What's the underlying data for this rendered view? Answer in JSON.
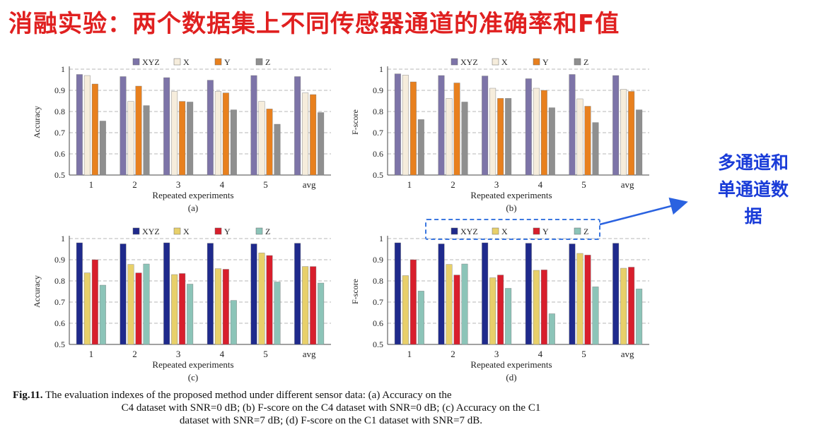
{
  "title": "消融实验：两个数据集上不同传感器通道的准确率和F值",
  "side_note": [
    "多通道和",
    "单通道数",
    "据"
  ],
  "caption": {
    "fig_label": "Fig.11.",
    "line1": " The evaluation indexes of the proposed method under different sensor data: (a) Accuracy on the",
    "line2": "C4 dataset with SNR=0 dB; (b) F-score on the C4 dataset with SNR=0 dB; (c) Accuracy on the C1",
    "line3": "dataset with SNR=7 dB; (d) F-score on the C1 dataset with SNR=7 dB."
  },
  "chart_data": [
    {
      "type": "bar",
      "panel_label": "(a)",
      "xlabel": "Repeated experiments",
      "ylabel": "Accuracy",
      "ylim": [
        0.5,
        1
      ],
      "yticks": [
        "0.5",
        "0.6",
        "0.7",
        "0.8",
        "0.9",
        "1"
      ],
      "categories": [
        "1",
        "2",
        "3",
        "4",
        "5",
        "avg"
      ],
      "grid": true,
      "legend_position": "top",
      "series": [
        {
          "name": "XYZ",
          "color": "#7d74a8",
          "values": [
            0.975,
            0.965,
            0.96,
            0.948,
            0.97,
            0.965
          ]
        },
        {
          "name": "X",
          "color": "#f6eddc",
          "values": [
            0.97,
            0.848,
            0.895,
            0.895,
            0.848,
            0.888
          ]
        },
        {
          "name": "Y",
          "color": "#e8801e",
          "values": [
            0.93,
            0.92,
            0.848,
            0.888,
            0.812,
            0.88
          ]
        },
        {
          "name": "Z",
          "color": "#8f8f8f",
          "values": [
            0.755,
            0.828,
            0.845,
            0.808,
            0.74,
            0.795
          ]
        }
      ]
    },
    {
      "type": "bar",
      "panel_label": "(b)",
      "xlabel": "Repeated experiments",
      "ylabel": "F-score",
      "ylim": [
        0.5,
        1
      ],
      "yticks": [
        "0.5",
        "0.6",
        "0.7",
        "0.8",
        "0.9",
        "1"
      ],
      "categories": [
        "1",
        "2",
        "3",
        "4",
        "5",
        "avg"
      ],
      "grid": true,
      "legend_position": "top",
      "series": [
        {
          "name": "XYZ",
          "color": "#7d74a8",
          "values": [
            0.978,
            0.97,
            0.968,
            0.955,
            0.975,
            0.97
          ]
        },
        {
          "name": "X",
          "color": "#f6eddc",
          "values": [
            0.972,
            0.862,
            0.91,
            0.91,
            0.86,
            0.905
          ]
        },
        {
          "name": "Y",
          "color": "#e8801e",
          "values": [
            0.94,
            0.935,
            0.862,
            0.9,
            0.825,
            0.895
          ]
        },
        {
          "name": "Z",
          "color": "#8f8f8f",
          "values": [
            0.762,
            0.845,
            0.862,
            0.818,
            0.748,
            0.808
          ]
        }
      ]
    },
    {
      "type": "bar",
      "panel_label": "(c)",
      "xlabel": "Repeated experiments",
      "ylabel": "Accuracy",
      "ylim": [
        0.5,
        1
      ],
      "yticks": [
        "0.5",
        "0.6",
        "0.7",
        "0.8",
        "0.9",
        "1"
      ],
      "categories": [
        "1",
        "2",
        "3",
        "4",
        "5",
        "avg"
      ],
      "grid": true,
      "legend_position": "top",
      "series": [
        {
          "name": "XYZ",
          "color": "#1f2a8c",
          "values": [
            0.98,
            0.975,
            0.98,
            0.978,
            0.975,
            0.978
          ]
        },
        {
          "name": "X",
          "color": "#e8d06a",
          "values": [
            0.838,
            0.878,
            0.83,
            0.858,
            0.932,
            0.868
          ]
        },
        {
          "name": "Y",
          "color": "#d81e2c",
          "values": [
            0.9,
            0.838,
            0.835,
            0.855,
            0.92,
            0.868
          ]
        },
        {
          "name": "Z",
          "color": "#8cc4b8",
          "values": [
            0.78,
            0.88,
            0.785,
            0.708,
            0.795,
            0.79
          ]
        }
      ]
    },
    {
      "type": "bar",
      "panel_label": "(d)",
      "xlabel": "Repeated experiments",
      "ylabel": "F-score",
      "ylim": [
        0.5,
        1
      ],
      "yticks": [
        "0.5",
        "0.6",
        "0.7",
        "0.8",
        "0.9",
        "1"
      ],
      "categories": [
        "1",
        "2",
        "3",
        "4",
        "5",
        "avg"
      ],
      "grid": true,
      "legend_position": "top",
      "series": [
        {
          "name": "XYZ",
          "color": "#1f2a8c",
          "values": [
            0.98,
            0.975,
            0.98,
            0.978,
            0.975,
            0.978
          ]
        },
        {
          "name": "X",
          "color": "#e8d06a",
          "values": [
            0.825,
            0.878,
            0.815,
            0.85,
            0.93,
            0.86
          ]
        },
        {
          "name": "Y",
          "color": "#d81e2c",
          "values": [
            0.9,
            0.828,
            0.828,
            0.852,
            0.922,
            0.865
          ]
        },
        {
          "name": "Z",
          "color": "#8cc4b8",
          "values": [
            0.752,
            0.88,
            0.765,
            0.645,
            0.772,
            0.762
          ]
        }
      ]
    }
  ]
}
